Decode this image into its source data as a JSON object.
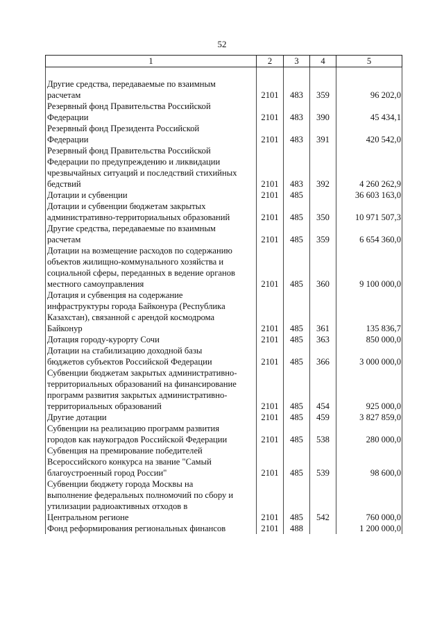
{
  "page_number": "52",
  "columns": [
    "1",
    "2",
    "3",
    "4",
    "5"
  ],
  "rows": [
    {
      "desc": "Другие средства, передаваемые по взаимным\nрасчетам",
      "c2": "2101",
      "c3": "483",
      "c4": "359",
      "c5": "96 202,0"
    },
    {
      "desc": "Резервный фонд Правительства Российской\nФедерации",
      "c2": "2101",
      "c3": "483",
      "c4": "390",
      "c5": "45 434,1"
    },
    {
      "desc": "Резервный фонд Президента Российской\nФедерации",
      "c2": "2101",
      "c3": "483",
      "c4": "391",
      "c5": "420 542,0"
    },
    {
      "desc": "Резервный фонд Правительства Российской\nФедерации по предупреждению и ликвидации\nчрезвычайных ситуаций и последствий стихийных\nбедствий",
      "c2": "2101",
      "c3": "483",
      "c4": "392",
      "c5": "4 260 262,9"
    },
    {
      "desc": "Дотации и субвенции",
      "c2": "2101",
      "c3": "485",
      "c4": "",
      "c5": "36 603 163,0"
    },
    {
      "desc": "Дотации и субвенции бюджетам закрытых\nадминистративно-территориальных образований",
      "c2": "2101",
      "c3": "485",
      "c4": "350",
      "c5": "10 971 507,3"
    },
    {
      "desc": "Другие средства, передаваемые по взаимным\nрасчетам",
      "c2": "2101",
      "c3": "485",
      "c4": "359",
      "c5": "6 654 360,0"
    },
    {
      "desc": "Дотации на возмещение расходов по содержанию\nобъектов жилищно-коммунального хозяйства и\nсоциальной сферы, переданных в ведение органов\nместного самоуправления",
      "c2": "2101",
      "c3": "485",
      "c4": "360",
      "c5": "9 100 000,0"
    },
    {
      "desc": "Дотация и субвенция на содержание\nинфраструктуры города Байконура (Республика\nКазахстан), связанной с арендой космодрома\nБайконур",
      "c2": "2101",
      "c3": "485",
      "c4": "361",
      "c5": "135 836,7"
    },
    {
      "desc": "Дотация городу-курорту Сочи",
      "c2": "2101",
      "c3": "485",
      "c4": "363",
      "c5": "850 000,0"
    },
    {
      "desc": "Дотации на стабилизацию доходной базы\nбюджетов субъектов Российской Федерации",
      "c2": "2101",
      "c3": "485",
      "c4": "366",
      "c5": "3 000 000,0"
    },
    {
      "desc": "Субвенции бюджетам закрытых административно-\nтерриториальных образований на финансирование\nпрограмм развития закрытых административно-\nтерриториальных образований",
      "c2": "2101",
      "c3": "485",
      "c4": "454",
      "c5": "925 000,0"
    },
    {
      "desc": "Другие дотации",
      "c2": "2101",
      "c3": "485",
      "c4": "459",
      "c5": "3 827 859,0"
    },
    {
      "desc": "Субвенции на реализацию программ развития\nгородов как наукоградов Российской Федерации",
      "c2": "2101",
      "c3": "485",
      "c4": "538",
      "c5": "280 000,0"
    },
    {
      "desc": "Субвенция на премирование победителей\nВсероссийского конкурса на звание \"Самый\nблагоустроенный город России\"",
      "c2": "2101",
      "c3": "485",
      "c4": "539",
      "c5": "98 600,0"
    },
    {
      "desc": "Субвенции бюджету города Москвы на\nвыполнение федеральных полномочий по сбору и\nутилизации радиоактивных отходов в\nЦентральном регионе",
      "c2": "2101",
      "c3": "485",
      "c4": "542",
      "c5": "760 000,0"
    },
    {
      "desc": "Фонд реформирования региональных финансов",
      "c2": "2101",
      "c3": "488",
      "c4": "",
      "c5": "1 200 000,0"
    }
  ]
}
